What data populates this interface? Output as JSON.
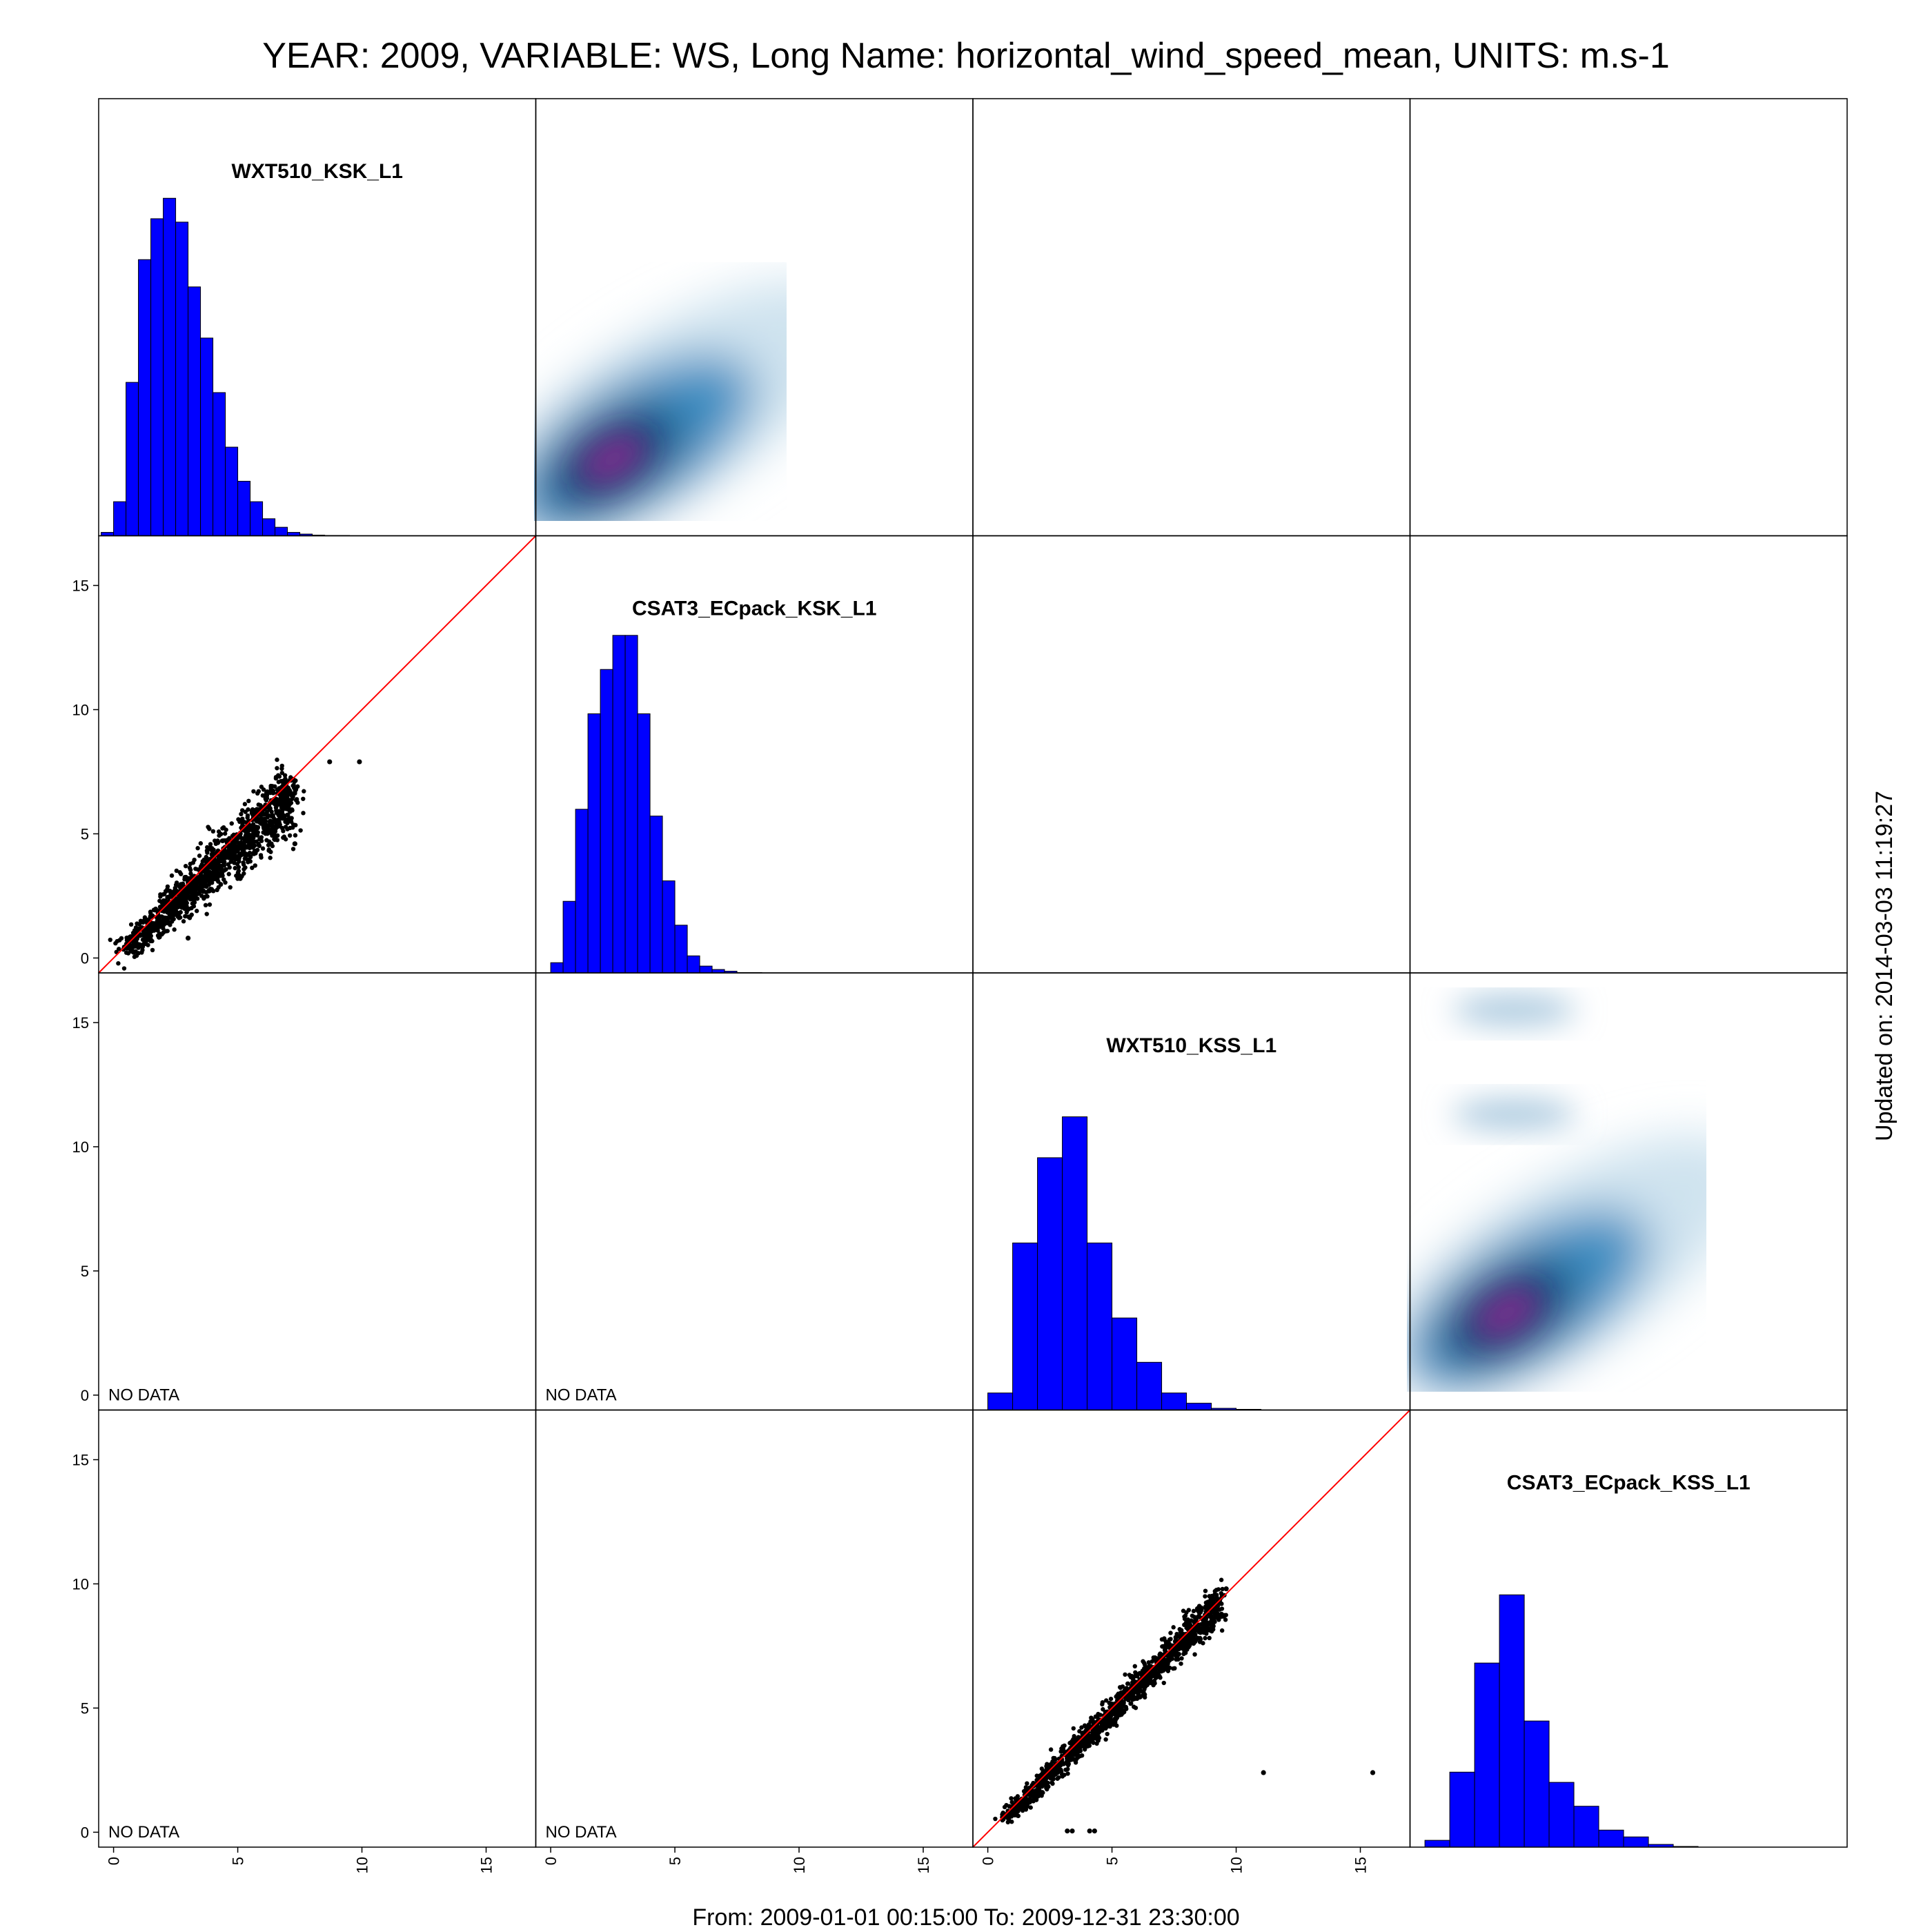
{
  "title": "YEAR: 2009, VARIABLE: WS, Long Name: horizontal_wind_speed_mean, UNITS: m.s-1",
  "footer": "From: 2009-01-01 00:15:00 To: 2009-12-31 23:30:00",
  "updated": "Updated on: 2014-03-03 11:19:27",
  "no_data_label": "NO DATA",
  "colors": {
    "histogram_fill": "#0000ff",
    "identity_line": "#ff0000",
    "points": "#000000",
    "density_peak": "#7b2f8e",
    "density_mid": "#0b3d6e"
  },
  "chart_data": {
    "type": "scatter-matrix",
    "variables": [
      "WXT510_KSK_L1",
      "CSAT3_ECpack_KSK_L1",
      "WXT510_KSS_L1",
      "CSAT3_ECpack_KSS_L1"
    ],
    "axis_range": [
      -0.6,
      17
    ],
    "ticks": [
      0,
      5,
      10,
      15
    ],
    "histograms": [
      {
        "bins": [
          -0.5,
          0,
          0.5,
          1,
          1.5,
          2,
          2.5,
          3,
          3.5,
          4,
          4.5,
          5,
          5.5,
          6,
          6.5,
          7,
          7.5,
          8,
          8.5,
          9,
          9.5,
          10
        ],
        "counts": [
          0.01,
          0.1,
          0.45,
          0.81,
          0.93,
          0.99,
          0.92,
          0.73,
          0.58,
          0.42,
          0.26,
          0.16,
          0.1,
          0.05,
          0.025,
          0.01,
          0.005,
          0.002,
          0.001,
          0.001,
          0
        ]
      },
      {
        "bins": [
          0,
          0.5,
          1,
          1.5,
          2,
          2.5,
          3,
          3.5,
          4,
          4.5,
          5,
          5.5,
          6,
          6.5,
          7,
          7.5,
          8,
          8.5
        ],
        "counts": [
          0.03,
          0.21,
          0.48,
          0.76,
          0.89,
          0.99,
          0.99,
          0.76,
          0.46,
          0.27,
          0.14,
          0.05,
          0.02,
          0.01,
          0.005,
          0.001,
          0.001
        ]
      },
      {
        "bins": [
          0,
          1,
          2,
          3,
          4,
          5,
          6,
          7,
          8,
          9,
          10,
          11
        ],
        "counts": [
          0.05,
          0.49,
          0.74,
          0.86,
          0.49,
          0.27,
          0.14,
          0.05,
          0.02,
          0.005,
          0.002
        ]
      },
      {
        "bins": [
          0,
          1,
          2,
          3,
          4,
          5,
          6,
          7,
          8,
          9,
          10,
          11
        ],
        "counts": [
          0.02,
          0.22,
          0.54,
          0.74,
          0.37,
          0.19,
          0.12,
          0.05,
          0.03,
          0.008,
          0.002
        ]
      }
    ],
    "scatter_pairs": [
      {
        "row": 2,
        "col": 1,
        "x_var": "WXT510_KSK_L1",
        "y_var": "CSAT3_ECpack_KSK_L1",
        "trend": [
          [
            0.5,
            0.3
          ],
          [
            7.2,
            6.6
          ]
        ],
        "spread": 0.55,
        "outliers": [
          [
            9.9,
            7.9
          ],
          [
            8.7,
            7.9
          ],
          [
            6.5,
            5.1
          ],
          [
            7.3,
            4.6
          ],
          [
            3.0,
            0.8
          ],
          [
            5.1,
            3.2
          ]
        ]
      },
      {
        "row": 4,
        "col": 3,
        "x_var": "WXT510_KSS_L1",
        "y_var": "CSAT3_ECpack_KSS_L1",
        "trend": [
          [
            0.7,
            0.5
          ],
          [
            9.4,
            9.3
          ]
        ],
        "spread": 0.32,
        "outliers": [
          [
            11.1,
            2.4
          ],
          [
            15.5,
            2.4
          ],
          [
            3.2,
            0.05
          ],
          [
            3.4,
            0.05
          ],
          [
            4.1,
            0.05
          ],
          [
            4.3,
            0.05
          ],
          [
            9.6,
            9.8
          ]
        ]
      }
    ],
    "density_pairs": [
      {
        "row": 1,
        "col": 2,
        "peak": [
          2.5,
          2.5
        ],
        "extent_x": [
          0,
          9.9
        ],
        "extent_y": [
          0,
          10.5
        ]
      },
      {
        "row": 3,
        "col": 4,
        "peak": [
          3.3,
          3.3
        ],
        "extent_x": [
          0,
          11.7
        ],
        "extent_y": [
          0,
          10.5
        ],
        "secondary_modes": [
          [
            3.6,
            11.3
          ],
          [
            3.6,
            15.5
          ]
        ]
      }
    ],
    "no_data_panels": [
      [
        3,
        1
      ],
      [
        3,
        2
      ],
      [
        4,
        1
      ],
      [
        4,
        2
      ]
    ],
    "identity_line": true
  }
}
